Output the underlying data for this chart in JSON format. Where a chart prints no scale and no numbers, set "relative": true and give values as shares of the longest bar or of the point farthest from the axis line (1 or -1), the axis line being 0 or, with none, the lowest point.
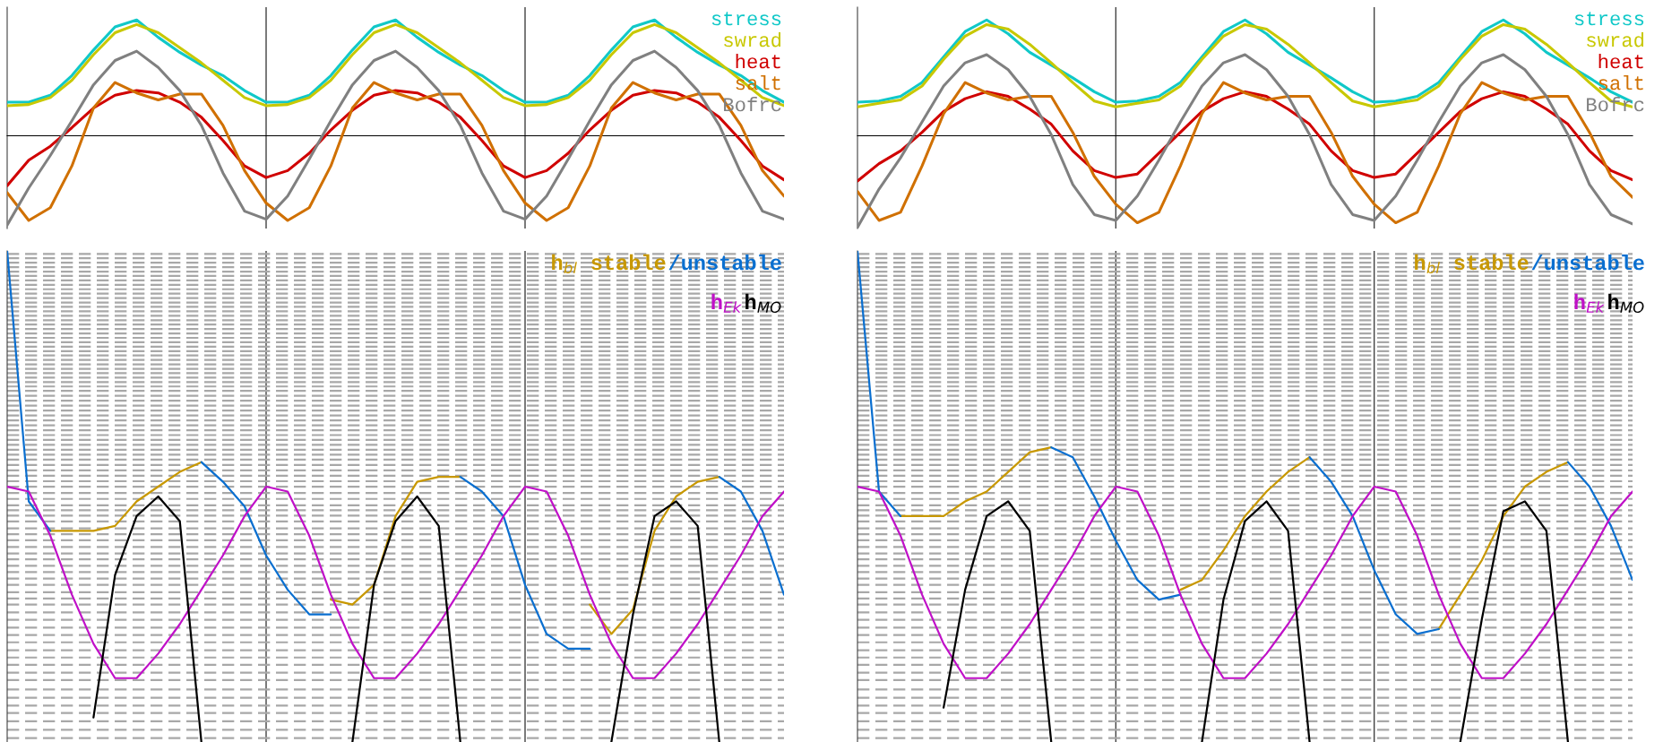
{
  "chart_data": [
    {
      "type": "line",
      "relative": true,
      "legend": "top right",
      "categories": [
        null,
        null,
        null,
        null,
        null,
        null,
        null,
        null,
        null,
        null,
        null,
        null,
        null,
        null,
        null,
        null,
        null,
        null,
        null,
        null,
        null,
        null,
        null,
        null,
        null,
        null,
        null,
        null,
        null,
        null,
        null,
        null,
        null,
        null,
        null,
        null,
        null
      ],
      "series": [
        {
          "name": "stress",
          "color": "#10c8c8",
          "values": [
            0.29,
            0.29,
            0.35,
            0.52,
            0.74,
            0.94,
            1.0,
            0.85,
            0.72,
            0.61,
            0.52,
            0.39,
            0.29,
            0.29,
            0.35,
            0.52,
            0.74,
            0.94,
            1.0,
            0.85,
            0.72,
            0.61,
            0.52,
            0.39,
            0.29,
            0.29,
            0.35,
            0.52,
            0.74,
            0.94,
            1.0,
            0.85,
            0.72,
            0.61,
            0.52,
            0.39,
            0.29
          ]
        },
        {
          "name": "swrad",
          "color": "#c8c800",
          "values": [
            0.26,
            0.27,
            0.33,
            0.48,
            0.7,
            0.89,
            0.96,
            0.89,
            0.76,
            0.63,
            0.48,
            0.33,
            0.26,
            0.27,
            0.33,
            0.48,
            0.7,
            0.89,
            0.96,
            0.89,
            0.76,
            0.63,
            0.48,
            0.33,
            0.26,
            0.27,
            0.33,
            0.48,
            0.7,
            0.89,
            0.96,
            0.89,
            0.76,
            0.63,
            0.48,
            0.33,
            0.26
          ]
        },
        {
          "name": "heat",
          "color": "#d00000",
          "values": [
            -0.43,
            -0.21,
            -0.09,
            0.07,
            0.24,
            0.35,
            0.39,
            0.37,
            0.29,
            0.16,
            -0.04,
            -0.26,
            -0.36,
            -0.3,
            -0.15,
            0.05,
            0.22,
            0.35,
            0.39,
            0.37,
            0.29,
            0.16,
            -0.04,
            -0.26,
            -0.36,
            -0.3,
            -0.15,
            0.05,
            0.22,
            0.35,
            0.39,
            0.37,
            0.29,
            0.16,
            -0.04,
            -0.26,
            -0.38
          ]
        },
        {
          "name": "salt",
          "color": "#d07000",
          "values": [
            -0.49,
            -0.73,
            -0.62,
            -0.26,
            0.24,
            0.46,
            0.37,
            0.31,
            0.36,
            0.36,
            0.09,
            -0.3,
            -0.58,
            -0.73,
            -0.62,
            -0.26,
            0.24,
            0.46,
            0.37,
            0.31,
            0.36,
            0.36,
            0.09,
            -0.3,
            -0.58,
            -0.73,
            -0.62,
            -0.26,
            0.24,
            0.46,
            0.37,
            0.31,
            0.36,
            0.36,
            0.09,
            -0.3,
            -0.52
          ]
        },
        {
          "name": "Bofrc",
          "color": "#808080",
          "values": [
            -0.77,
            -0.45,
            -0.17,
            0.13,
            0.44,
            0.65,
            0.73,
            0.59,
            0.39,
            0.09,
            -0.32,
            -0.65,
            -0.72,
            -0.52,
            -0.2,
            0.13,
            0.44,
            0.65,
            0.73,
            0.59,
            0.39,
            0.09,
            -0.32,
            -0.65,
            -0.72,
            -0.52,
            -0.2,
            0.13,
            0.44,
            0.65,
            0.73,
            0.59,
            0.39,
            0.09,
            -0.32,
            -0.65,
            -0.72
          ]
        }
      ]
    },
    {
      "type": "line",
      "relative": true,
      "legend": "top right",
      "categories": [
        null,
        null,
        null,
        null,
        null,
        null,
        null,
        null,
        null,
        null,
        null,
        null,
        null,
        null,
        null,
        null,
        null,
        null,
        null,
        null,
        null,
        null,
        null,
        null,
        null,
        null,
        null,
        null,
        null,
        null,
        null,
        null,
        null,
        null,
        null,
        null,
        null
      ],
      "series": [
        {
          "name": "stress",
          "color": "#10c8c8",
          "values": [
            0.29,
            0.3,
            0.34,
            0.46,
            0.68,
            0.9,
            1.0,
            0.88,
            0.72,
            0.61,
            0.5,
            0.38,
            0.29,
            0.3,
            0.34,
            0.46,
            0.68,
            0.9,
            1.0,
            0.88,
            0.72,
            0.61,
            0.5,
            0.38,
            0.29,
            0.3,
            0.34,
            0.46,
            0.68,
            0.9,
            1.0,
            0.88,
            0.72,
            0.61,
            0.5,
            0.38,
            0.29
          ]
        },
        {
          "name": "swrad",
          "color": "#c8c800",
          "values": [
            0.25,
            0.28,
            0.31,
            0.43,
            0.66,
            0.86,
            0.96,
            0.92,
            0.79,
            0.63,
            0.46,
            0.3,
            0.25,
            0.28,
            0.31,
            0.43,
            0.66,
            0.86,
            0.96,
            0.92,
            0.79,
            0.63,
            0.46,
            0.3,
            0.25,
            0.28,
            0.31,
            0.43,
            0.66,
            0.86,
            0.96,
            0.92,
            0.79,
            0.63,
            0.46,
            0.3,
            0.25
          ]
        },
        {
          "name": "heat",
          "color": "#d00000",
          "values": [
            -0.39,
            -0.24,
            -0.13,
            0.03,
            0.21,
            0.32,
            0.38,
            0.34,
            0.23,
            0.1,
            -0.13,
            -0.3,
            -0.36,
            -0.33,
            -0.15,
            0.03,
            0.21,
            0.32,
            0.38,
            0.34,
            0.23,
            0.1,
            -0.13,
            -0.3,
            -0.36,
            -0.33,
            -0.15,
            0.03,
            0.21,
            0.32,
            0.38,
            0.34,
            0.23,
            0.1,
            -0.13,
            -0.3,
            -0.38
          ]
        },
        {
          "name": "salt",
          "color": "#d07000",
          "values": [
            -0.48,
            -0.73,
            -0.66,
            -0.26,
            0.19,
            0.46,
            0.37,
            0.31,
            0.34,
            0.34,
            0.03,
            -0.35,
            -0.59,
            -0.75,
            -0.66,
            -0.26,
            0.19,
            0.46,
            0.37,
            0.31,
            0.34,
            0.34,
            0.03,
            -0.35,
            -0.59,
            -0.75,
            -0.66,
            -0.26,
            0.19,
            0.46,
            0.37,
            0.31,
            0.34,
            0.34,
            0.03,
            -0.35,
            -0.53
          ]
        },
        {
          "name": "Bofrc",
          "color": "#808080",
          "values": [
            -0.79,
            -0.46,
            -0.19,
            0.12,
            0.43,
            0.63,
            0.7,
            0.57,
            0.34,
            0.01,
            -0.42,
            -0.68,
            -0.73,
            -0.52,
            -0.21,
            0.12,
            0.43,
            0.63,
            0.7,
            0.57,
            0.34,
            0.01,
            -0.42,
            -0.68,
            -0.73,
            -0.52,
            -0.21,
            0.12,
            0.43,
            0.63,
            0.7,
            0.57,
            0.34,
            0.01,
            -0.42,
            -0.68,
            -0.76
          ]
        }
      ]
    },
    {
      "type": "line",
      "relative": true,
      "legend": "top right",
      "categories": [
        null,
        null,
        null,
        null,
        null,
        null,
        null,
        null,
        null,
        null,
        null,
        null,
        null,
        null,
        null,
        null,
        null,
        null,
        null,
        null,
        null,
        null,
        null,
        null,
        null,
        null,
        null,
        null,
        null,
        null,
        null,
        null,
        null,
        null,
        null,
        null,
        null
      ],
      "series": [
        {
          "name": "h$_{bl}$ stable",
          "color": "#c89800",
          "values": [
            null,
            null,
            0.43,
            0.43,
            0.43,
            0.44,
            0.49,
            0.52,
            0.55,
            0.57,
            null,
            null,
            null,
            null,
            null,
            0.29,
            0.28,
            0.32,
            0.46,
            0.53,
            0.54,
            0.54,
            null,
            null,
            null,
            null,
            null,
            0.28,
            0.22,
            0.27,
            0.43,
            0.5,
            0.53,
            0.54,
            null,
            null,
            null
          ]
        },
        {
          "name": "/unstable",
          "color": "#0a6fd0",
          "values": [
            1.0,
            0.49,
            0.43,
            null,
            null,
            null,
            null,
            null,
            null,
            0.57,
            0.53,
            0.48,
            0.38,
            0.31,
            0.26,
            0.26,
            null,
            null,
            null,
            null,
            null,
            0.54,
            0.51,
            0.46,
            0.32,
            0.22,
            0.19,
            0.19,
            null,
            null,
            null,
            null,
            null,
            0.54,
            0.51,
            0.43,
            0.3
          ]
        },
        {
          "name": "h$_{Ek}$",
          "color": "#c010c8",
          "values": [
            0.52,
            0.51,
            0.42,
            0.3,
            0.2,
            0.13,
            0.13,
            0.18,
            0.24,
            0.31,
            0.38,
            0.46,
            0.52,
            0.51,
            0.42,
            0.3,
            0.2,
            0.13,
            0.13,
            0.18,
            0.24,
            0.31,
            0.38,
            0.46,
            0.52,
            0.51,
            0.42,
            0.3,
            0.2,
            0.13,
            0.13,
            0.18,
            0.24,
            0.31,
            0.38,
            0.46,
            0.51
          ]
        },
        {
          "name": "h$_{MO}$",
          "color": "#000000",
          "values": [
            null,
            null,
            null,
            null,
            0.05,
            0.34,
            0.46,
            0.5,
            0.45,
            0.0,
            null,
            null,
            null,
            null,
            null,
            null,
            0.0,
            0.32,
            0.45,
            0.5,
            0.44,
            0.0,
            null,
            null,
            null,
            null,
            null,
            null,
            0.0,
            0.26,
            0.46,
            0.49,
            0.44,
            0.0,
            null,
            null,
            null
          ]
        }
      ],
      "ref_lines": [
        {
          "axis": "y",
          "value": 0.008,
          "color": "#a8a8a8",
          "line_style": "dashed"
        },
        {
          "axis": "y",
          "value": 0.025,
          "color": "#a8a8a8",
          "line_style": "dashed"
        },
        {
          "axis": "y",
          "value": 0.042,
          "color": "#a8a8a8",
          "line_style": "dashed"
        },
        {
          "axis": "y",
          "value": 0.059,
          "color": "#a8a8a8",
          "line_style": "dashed"
        },
        {
          "axis": "y",
          "value": 0.074,
          "color": "#a8a8a8",
          "line_style": "dashed"
        },
        {
          "axis": "y",
          "value": 0.09,
          "color": "#a8a8a8",
          "line_style": "dashed"
        },
        {
          "axis": "y",
          "value": 0.107,
          "color": "#a8a8a8",
          "line_style": "dashed"
        },
        {
          "axis": "y",
          "value": 0.126,
          "color": "#a8a8a8",
          "line_style": "dashed"
        },
        {
          "axis": "y",
          "value": 0.141,
          "color": "#a8a8a8",
          "line_style": "dashed"
        },
        {
          "axis": "y",
          "value": 0.157,
          "color": "#a8a8a8",
          "line_style": "dashed"
        },
        {
          "axis": "y",
          "value": 0.172,
          "color": "#a8a8a8",
          "line_style": "dashed"
        },
        {
          "axis": "y",
          "value": 0.187,
          "color": "#a8a8a8",
          "line_style": "dashed"
        },
        {
          "axis": "y",
          "value": 0.203,
          "color": "#a8a8a8",
          "line_style": "dashed"
        },
        {
          "axis": "y",
          "value": 0.218,
          "color": "#a8a8a8",
          "line_style": "dashed"
        },
        {
          "axis": "y",
          "value": 0.233,
          "color": "#a8a8a8",
          "line_style": "dashed"
        },
        {
          "axis": "y",
          "value": 0.249,
          "color": "#a8a8a8",
          "line_style": "dashed"
        },
        {
          "axis": "y",
          "value": 0.264,
          "color": "#a8a8a8",
          "line_style": "dashed"
        },
        {
          "axis": "y",
          "value": 0.28,
          "color": "#a8a8a8",
          "line_style": "dashed"
        },
        {
          "axis": "y",
          "value": 0.292,
          "color": "#a8a8a8",
          "line_style": "dashed"
        },
        {
          "axis": "y",
          "value": 0.305,
          "color": "#a8a8a8",
          "line_style": "dashed"
        },
        {
          "axis": "y",
          "value": 0.32,
          "color": "#a8a8a8",
          "line_style": "dashed"
        },
        {
          "axis": "y",
          "value": 0.333,
          "color": "#a8a8a8",
          "line_style": "dashed"
        },
        {
          "axis": "y",
          "value": 0.346,
          "color": "#a8a8a8",
          "line_style": "dashed"
        },
        {
          "axis": "y",
          "value": 0.359,
          "color": "#a8a8a8",
          "line_style": "dashed"
        },
        {
          "axis": "y",
          "value": 0.372,
          "color": "#a8a8a8",
          "line_style": "dashed"
        },
        {
          "axis": "y",
          "value": 0.384,
          "color": "#a8a8a8",
          "line_style": "dashed"
        },
        {
          "axis": "y",
          "value": 0.397,
          "color": "#a8a8a8",
          "line_style": "dashed"
        },
        {
          "axis": "y",
          "value": 0.411,
          "color": "#a8a8a8",
          "line_style": "dashed"
        },
        {
          "axis": "y",
          "value": 0.423,
          "color": "#a8a8a8",
          "line_style": "dashed"
        },
        {
          "axis": "y",
          "value": 0.435,
          "color": "#a8a8a8",
          "line_style": "dashed"
        },
        {
          "axis": "y",
          "value": 0.449,
          "color": "#a8a8a8",
          "line_style": "dashed"
        },
        {
          "axis": "y",
          "value": 0.461,
          "color": "#a8a8a8",
          "line_style": "dashed"
        },
        {
          "axis": "y",
          "value": 0.472,
          "color": "#a8a8a8",
          "line_style": "dashed"
        },
        {
          "axis": "y",
          "value": 0.482,
          "color": "#a8a8a8",
          "line_style": "dashed"
        },
        {
          "axis": "y",
          "value": 0.495,
          "color": "#a8a8a8",
          "line_style": "dashed"
        },
        {
          "axis": "y",
          "value": 0.507,
          "color": "#a8a8a8",
          "line_style": "dashed"
        },
        {
          "axis": "y",
          "value": 0.52,
          "color": "#a8a8a8",
          "line_style": "dashed"
        },
        {
          "axis": "y",
          "value": 0.531,
          "color": "#a8a8a8",
          "line_style": "dashed"
        },
        {
          "axis": "y",
          "value": 0.542,
          "color": "#a8a8a8",
          "line_style": "dashed"
        },
        {
          "axis": "y",
          "value": 0.553,
          "color": "#a8a8a8",
          "line_style": "dashed"
        },
        {
          "axis": "y",
          "value": 0.564,
          "color": "#a8a8a8",
          "line_style": "dashed"
        },
        {
          "axis": "y",
          "value": 0.575,
          "color": "#a8a8a8",
          "line_style": "dashed"
        },
        {
          "axis": "y",
          "value": 0.585,
          "color": "#a8a8a8",
          "line_style": "dashed"
        },
        {
          "axis": "y",
          "value": 0.595,
          "color": "#a8a8a8",
          "line_style": "dashed"
        },
        {
          "axis": "y",
          "value": 0.605,
          "color": "#a8a8a8",
          "line_style": "dashed"
        },
        {
          "axis": "y",
          "value": 0.615,
          "color": "#a8a8a8",
          "line_style": "dashed"
        },
        {
          "axis": "y",
          "value": 0.625,
          "color": "#a8a8a8",
          "line_style": "dashed"
        },
        {
          "axis": "y",
          "value": 0.635,
          "color": "#a8a8a8",
          "line_style": "dashed"
        },
        {
          "axis": "y",
          "value": 0.645,
          "color": "#a8a8a8",
          "line_style": "dashed"
        },
        {
          "axis": "y",
          "value": 0.655,
          "color": "#a8a8a8",
          "line_style": "dashed"
        },
        {
          "axis": "y",
          "value": 0.665,
          "color": "#a8a8a8",
          "line_style": "dashed"
        },
        {
          "axis": "y",
          "value": 0.675,
          "color": "#a8a8a8",
          "line_style": "dashed"
        },
        {
          "axis": "y",
          "value": 0.685,
          "color": "#a8a8a8",
          "line_style": "dashed"
        },
        {
          "axis": "y",
          "value": 0.695,
          "color": "#a8a8a8",
          "line_style": "dashed"
        },
        {
          "axis": "y",
          "value": 0.705,
          "color": "#a8a8a8",
          "line_style": "dashed"
        },
        {
          "axis": "y",
          "value": 0.715,
          "color": "#a8a8a8",
          "line_style": "dashed"
        },
        {
          "axis": "y",
          "value": 0.724,
          "color": "#a8a8a8",
          "line_style": "dashed"
        },
        {
          "axis": "y",
          "value": 0.733,
          "color": "#a8a8a8",
          "line_style": "dashed"
        },
        {
          "axis": "y",
          "value": 0.742,
          "color": "#a8a8a8",
          "line_style": "dashed"
        },
        {
          "axis": "y",
          "value": 0.751,
          "color": "#a8a8a8",
          "line_style": "dashed"
        },
        {
          "axis": "y",
          "value": 0.76,
          "color": "#a8a8a8",
          "line_style": "dashed"
        },
        {
          "axis": "y",
          "value": 0.769,
          "color": "#a8a8a8",
          "line_style": "dashed"
        },
        {
          "axis": "y",
          "value": 0.778,
          "color": "#a8a8a8",
          "line_style": "dashed"
        },
        {
          "axis": "y",
          "value": 0.787,
          "color": "#a8a8a8",
          "line_style": "dashed"
        },
        {
          "axis": "y",
          "value": 0.796,
          "color": "#a8a8a8",
          "line_style": "dashed"
        },
        {
          "axis": "y",
          "value": 0.805,
          "color": "#a8a8a8",
          "line_style": "dashed"
        },
        {
          "axis": "y",
          "value": 0.814,
          "color": "#a8a8a8",
          "line_style": "dashed"
        },
        {
          "axis": "y",
          "value": 0.823,
          "color": "#a8a8a8",
          "line_style": "dashed"
        },
        {
          "axis": "y",
          "value": 0.832,
          "color": "#a8a8a8",
          "line_style": "dashed"
        },
        {
          "axis": "y",
          "value": 0.841,
          "color": "#a8a8a8",
          "line_style": "dashed"
        },
        {
          "axis": "y",
          "value": 0.85,
          "color": "#a8a8a8",
          "line_style": "dashed"
        },
        {
          "axis": "y",
          "value": 0.859,
          "color": "#a8a8a8",
          "line_style": "dashed"
        },
        {
          "axis": "y",
          "value": 0.868,
          "color": "#a8a8a8",
          "line_style": "dashed"
        },
        {
          "axis": "y",
          "value": 0.877,
          "color": "#a8a8a8",
          "line_style": "dashed"
        },
        {
          "axis": "y",
          "value": 0.886,
          "color": "#a8a8a8",
          "line_style": "dashed"
        },
        {
          "axis": "y",
          "value": 0.895,
          "color": "#a8a8a8",
          "line_style": "dashed"
        },
        {
          "axis": "y",
          "value": 0.904,
          "color": "#a8a8a8",
          "line_style": "dashed"
        },
        {
          "axis": "y",
          "value": 0.913,
          "color": "#a8a8a8",
          "line_style": "dashed"
        },
        {
          "axis": "y",
          "value": 0.922,
          "color": "#a8a8a8",
          "line_style": "dashed"
        },
        {
          "axis": "y",
          "value": 0.931,
          "color": "#a8a8a8",
          "line_style": "dashed"
        },
        {
          "axis": "y",
          "value": 0.94,
          "color": "#a8a8a8",
          "line_style": "dashed"
        },
        {
          "axis": "y",
          "value": 0.949,
          "color": "#a8a8a8",
          "line_style": "dashed"
        },
        {
          "axis": "y",
          "value": 0.958,
          "color": "#a8a8a8",
          "line_style": "dashed"
        },
        {
          "axis": "y",
          "value": 0.967,
          "color": "#a8a8a8",
          "line_style": "dashed"
        },
        {
          "axis": "y",
          "value": 0.976,
          "color": "#a8a8a8",
          "line_style": "dashed"
        },
        {
          "axis": "y",
          "value": 0.985,
          "color": "#a8a8a8",
          "line_style": "dashed"
        },
        {
          "axis": "y",
          "value": 0.994,
          "color": "#a8a8a8",
          "line_style": "dashed"
        }
      ]
    },
    {
      "type": "line",
      "relative": true,
      "legend": "top right",
      "categories": [
        null,
        null,
        null,
        null,
        null,
        null,
        null,
        null,
        null,
        null,
        null,
        null,
        null,
        null,
        null,
        null,
        null,
        null,
        null,
        null,
        null,
        null,
        null,
        null,
        null,
        null,
        null,
        null,
        null,
        null,
        null,
        null,
        null,
        null,
        null,
        null,
        null
      ],
      "series": [
        {
          "name": "h$_{bl}$ stable",
          "color": "#c89800",
          "values": [
            null,
            null,
            0.46,
            0.46,
            0.46,
            0.49,
            0.51,
            0.55,
            0.59,
            0.6,
            null,
            null,
            null,
            null,
            null,
            0.31,
            0.33,
            0.39,
            0.46,
            0.51,
            0.55,
            0.58,
            null,
            null,
            null,
            null,
            null,
            0.23,
            0.3,
            0.37,
            0.46,
            0.52,
            0.55,
            0.57,
            null,
            null,
            null
          ]
        },
        {
          "name": "/unstable",
          "color": "#0a6fd0",
          "values": [
            1.0,
            0.51,
            0.46,
            null,
            null,
            null,
            null,
            null,
            null,
            0.6,
            0.58,
            0.5,
            0.41,
            0.33,
            0.29,
            0.3,
            null,
            null,
            null,
            null,
            null,
            0.58,
            0.53,
            0.46,
            0.35,
            0.26,
            0.22,
            0.23,
            null,
            null,
            null,
            null,
            null,
            0.57,
            0.52,
            0.44,
            0.33
          ]
        },
        {
          "name": "h$_{Ek}$",
          "color": "#c010c8",
          "values": [
            0.52,
            0.51,
            0.42,
            0.3,
            0.2,
            0.13,
            0.13,
            0.18,
            0.24,
            0.31,
            0.38,
            0.46,
            0.52,
            0.51,
            0.42,
            0.3,
            0.2,
            0.13,
            0.13,
            0.18,
            0.24,
            0.31,
            0.38,
            0.46,
            0.52,
            0.51,
            0.42,
            0.3,
            0.2,
            0.13,
            0.13,
            0.18,
            0.24,
            0.31,
            0.38,
            0.46,
            0.51
          ]
        },
        {
          "name": "h$_{MO}$",
          "color": "#000000",
          "values": [
            null,
            null,
            null,
            null,
            0.07,
            0.31,
            0.46,
            0.49,
            0.43,
            0.0,
            null,
            null,
            null,
            null,
            null,
            null,
            0.0,
            0.29,
            0.45,
            0.49,
            0.43,
            0.0,
            null,
            null,
            null,
            null,
            null,
            null,
            0.0,
            0.25,
            0.47,
            0.49,
            0.43,
            0.0,
            null,
            null,
            null
          ]
        }
      ],
      "ref_lines": [
        {
          "axis": "y",
          "value": 0.008,
          "color": "#a8a8a8",
          "line_style": "dashed"
        },
        {
          "axis": "y",
          "value": 0.025,
          "color": "#a8a8a8",
          "line_style": "dashed"
        },
        {
          "axis": "y",
          "value": 0.042,
          "color": "#a8a8a8",
          "line_style": "dashed"
        },
        {
          "axis": "y",
          "value": 0.059,
          "color": "#a8a8a8",
          "line_style": "dashed"
        },
        {
          "axis": "y",
          "value": 0.074,
          "color": "#a8a8a8",
          "line_style": "dashed"
        },
        {
          "axis": "y",
          "value": 0.09,
          "color": "#a8a8a8",
          "line_style": "dashed"
        },
        {
          "axis": "y",
          "value": 0.107,
          "color": "#a8a8a8",
          "line_style": "dashed"
        },
        {
          "axis": "y",
          "value": 0.126,
          "color": "#a8a8a8",
          "line_style": "dashed"
        },
        {
          "axis": "y",
          "value": 0.141,
          "color": "#a8a8a8",
          "line_style": "dashed"
        },
        {
          "axis": "y",
          "value": 0.157,
          "color": "#a8a8a8",
          "line_style": "dashed"
        },
        {
          "axis": "y",
          "value": 0.172,
          "color": "#a8a8a8",
          "line_style": "dashed"
        },
        {
          "axis": "y",
          "value": 0.187,
          "color": "#a8a8a8",
          "line_style": "dashed"
        },
        {
          "axis": "y",
          "value": 0.203,
          "color": "#a8a8a8",
          "line_style": "dashed"
        },
        {
          "axis": "y",
          "value": 0.218,
          "color": "#a8a8a8",
          "line_style": "dashed"
        },
        {
          "axis": "y",
          "value": 0.233,
          "color": "#a8a8a8",
          "line_style": "dashed"
        },
        {
          "axis": "y",
          "value": 0.249,
          "color": "#a8a8a8",
          "line_style": "dashed"
        },
        {
          "axis": "y",
          "value": 0.264,
          "color": "#a8a8a8",
          "line_style": "dashed"
        },
        {
          "axis": "y",
          "value": 0.28,
          "color": "#a8a8a8",
          "line_style": "dashed"
        },
        {
          "axis": "y",
          "value": 0.292,
          "color": "#a8a8a8",
          "line_style": "dashed"
        },
        {
          "axis": "y",
          "value": 0.305,
          "color": "#a8a8a8",
          "line_style": "dashed"
        },
        {
          "axis": "y",
          "value": 0.32,
          "color": "#a8a8a8",
          "line_style": "dashed"
        },
        {
          "axis": "y",
          "value": 0.333,
          "color": "#a8a8a8",
          "line_style": "dashed"
        },
        {
          "axis": "y",
          "value": 0.346,
          "color": "#a8a8a8",
          "line_style": "dashed"
        },
        {
          "axis": "y",
          "value": 0.359,
          "color": "#a8a8a8",
          "line_style": "dashed"
        },
        {
          "axis": "y",
          "value": 0.372,
          "color": "#a8a8a8",
          "line_style": "dashed"
        },
        {
          "axis": "y",
          "value": 0.384,
          "color": "#a8a8a8",
          "line_style": "dashed"
        },
        {
          "axis": "y",
          "value": 0.397,
          "color": "#a8a8a8",
          "line_style": "dashed"
        },
        {
          "axis": "y",
          "value": 0.411,
          "color": "#a8a8a8",
          "line_style": "dashed"
        },
        {
          "axis": "y",
          "value": 0.423,
          "color": "#a8a8a8",
          "line_style": "dashed"
        },
        {
          "axis": "y",
          "value": 0.435,
          "color": "#a8a8a8",
          "line_style": "dashed"
        },
        {
          "axis": "y",
          "value": 0.449,
          "color": "#a8a8a8",
          "line_style": "dashed"
        },
        {
          "axis": "y",
          "value": 0.461,
          "color": "#a8a8a8",
          "line_style": "dashed"
        },
        {
          "axis": "y",
          "value": 0.472,
          "color": "#a8a8a8",
          "line_style": "dashed"
        },
        {
          "axis": "y",
          "value": 0.482,
          "color": "#a8a8a8",
          "line_style": "dashed"
        },
        {
          "axis": "y",
          "value": 0.495,
          "color": "#a8a8a8",
          "line_style": "dashed"
        },
        {
          "axis": "y",
          "value": 0.507,
          "color": "#a8a8a8",
          "line_style": "dashed"
        },
        {
          "axis": "y",
          "value": 0.52,
          "color": "#a8a8a8",
          "line_style": "dashed"
        },
        {
          "axis": "y",
          "value": 0.531,
          "color": "#a8a8a8",
          "line_style": "dashed"
        },
        {
          "axis": "y",
          "value": 0.542,
          "color": "#a8a8a8",
          "line_style": "dashed"
        },
        {
          "axis": "y",
          "value": 0.553,
          "color": "#a8a8a8",
          "line_style": "dashed"
        },
        {
          "axis": "y",
          "value": 0.564,
          "color": "#a8a8a8",
          "line_style": "dashed"
        },
        {
          "axis": "y",
          "value": 0.575,
          "color": "#a8a8a8",
          "line_style": "dashed"
        },
        {
          "axis": "y",
          "value": 0.585,
          "color": "#a8a8a8",
          "line_style": "dashed"
        },
        {
          "axis": "y",
          "value": 0.595,
          "color": "#a8a8a8",
          "line_style": "dashed"
        },
        {
          "axis": "y",
          "value": 0.605,
          "color": "#a8a8a8",
          "line_style": "dashed"
        },
        {
          "axis": "y",
          "value": 0.615,
          "color": "#a8a8a8",
          "line_style": "dashed"
        },
        {
          "axis": "y",
          "value": 0.625,
          "color": "#a8a8a8",
          "line_style": "dashed"
        },
        {
          "axis": "y",
          "value": 0.635,
          "color": "#a8a8a8",
          "line_style": "dashed"
        },
        {
          "axis": "y",
          "value": 0.645,
          "color": "#a8a8a8",
          "line_style": "dashed"
        },
        {
          "axis": "y",
          "value": 0.655,
          "color": "#a8a8a8",
          "line_style": "dashed"
        },
        {
          "axis": "y",
          "value": 0.665,
          "color": "#a8a8a8",
          "line_style": "dashed"
        },
        {
          "axis": "y",
          "value": 0.675,
          "color": "#a8a8a8",
          "line_style": "dashed"
        },
        {
          "axis": "y",
          "value": 0.685,
          "color": "#a8a8a8",
          "line_style": "dashed"
        },
        {
          "axis": "y",
          "value": 0.695,
          "color": "#a8a8a8",
          "line_style": "dashed"
        },
        {
          "axis": "y",
          "value": 0.705,
          "color": "#a8a8a8",
          "line_style": "dashed"
        },
        {
          "axis": "y",
          "value": 0.715,
          "color": "#a8a8a8",
          "line_style": "dashed"
        },
        {
          "axis": "y",
          "value": 0.724,
          "color": "#a8a8a8",
          "line_style": "dashed"
        },
        {
          "axis": "y",
          "value": 0.733,
          "color": "#a8a8a8",
          "line_style": "dashed"
        },
        {
          "axis": "y",
          "value": 0.742,
          "color": "#a8a8a8",
          "line_style": "dashed"
        },
        {
          "axis": "y",
          "value": 0.751,
          "color": "#a8a8a8",
          "line_style": "dashed"
        },
        {
          "axis": "y",
          "value": 0.76,
          "color": "#a8a8a8",
          "line_style": "dashed"
        },
        {
          "axis": "y",
          "value": 0.769,
          "color": "#a8a8a8",
          "line_style": "dashed"
        },
        {
          "axis": "y",
          "value": 0.778,
          "color": "#a8a8a8",
          "line_style": "dashed"
        },
        {
          "axis": "y",
          "value": 0.787,
          "color": "#a8a8a8",
          "line_style": "dashed"
        },
        {
          "axis": "y",
          "value": 0.796,
          "color": "#a8a8a8",
          "line_style": "dashed"
        },
        {
          "axis": "y",
          "value": 0.805,
          "color": "#a8a8a8",
          "line_style": "dashed"
        },
        {
          "axis": "y",
          "value": 0.814,
          "color": "#a8a8a8",
          "line_style": "dashed"
        },
        {
          "axis": "y",
          "value": 0.823,
          "color": "#a8a8a8",
          "line_style": "dashed"
        },
        {
          "axis": "y",
          "value": 0.832,
          "color": "#a8a8a8",
          "line_style": "dashed"
        },
        {
          "axis": "y",
          "value": 0.841,
          "color": "#a8a8a8",
          "line_style": "dashed"
        },
        {
          "axis": "y",
          "value": 0.85,
          "color": "#a8a8a8",
          "line_style": "dashed"
        },
        {
          "axis": "y",
          "value": 0.859,
          "color": "#a8a8a8",
          "line_style": "dashed"
        },
        {
          "axis": "y",
          "value": 0.868,
          "color": "#a8a8a8",
          "line_style": "dashed"
        },
        {
          "axis": "y",
          "value": 0.877,
          "color": "#a8a8a8",
          "line_style": "dashed"
        },
        {
          "axis": "y",
          "value": 0.886,
          "color": "#a8a8a8",
          "line_style": "dashed"
        },
        {
          "axis": "y",
          "value": 0.895,
          "color": "#a8a8a8",
          "line_style": "dashed"
        },
        {
          "axis": "y",
          "value": 0.904,
          "color": "#a8a8a8",
          "line_style": "dashed"
        },
        {
          "axis": "y",
          "value": 0.913,
          "color": "#a8a8a8",
          "line_style": "dashed"
        },
        {
          "axis": "y",
          "value": 0.922,
          "color": "#a8a8a8",
          "line_style": "dashed"
        },
        {
          "axis": "y",
          "value": 0.931,
          "color": "#a8a8a8",
          "line_style": "dashed"
        },
        {
          "axis": "y",
          "value": 0.94,
          "color": "#a8a8a8",
          "line_style": "dashed"
        },
        {
          "axis": "y",
          "value": 0.949,
          "color": "#a8a8a8",
          "line_style": "dashed"
        },
        {
          "axis": "y",
          "value": 0.958,
          "color": "#a8a8a8",
          "line_style": "dashed"
        },
        {
          "axis": "y",
          "value": 0.967,
          "color": "#a8a8a8",
          "line_style": "dashed"
        },
        {
          "axis": "y",
          "value": 0.976,
          "color": "#a8a8a8",
          "line_style": "dashed"
        },
        {
          "axis": "y",
          "value": 0.985,
          "color": "#a8a8a8",
          "line_style": "dashed"
        },
        {
          "axis": "y",
          "value": 0.994,
          "color": "#a8a8a8",
          "line_style": "dashed"
        }
      ]
    }
  ]
}
